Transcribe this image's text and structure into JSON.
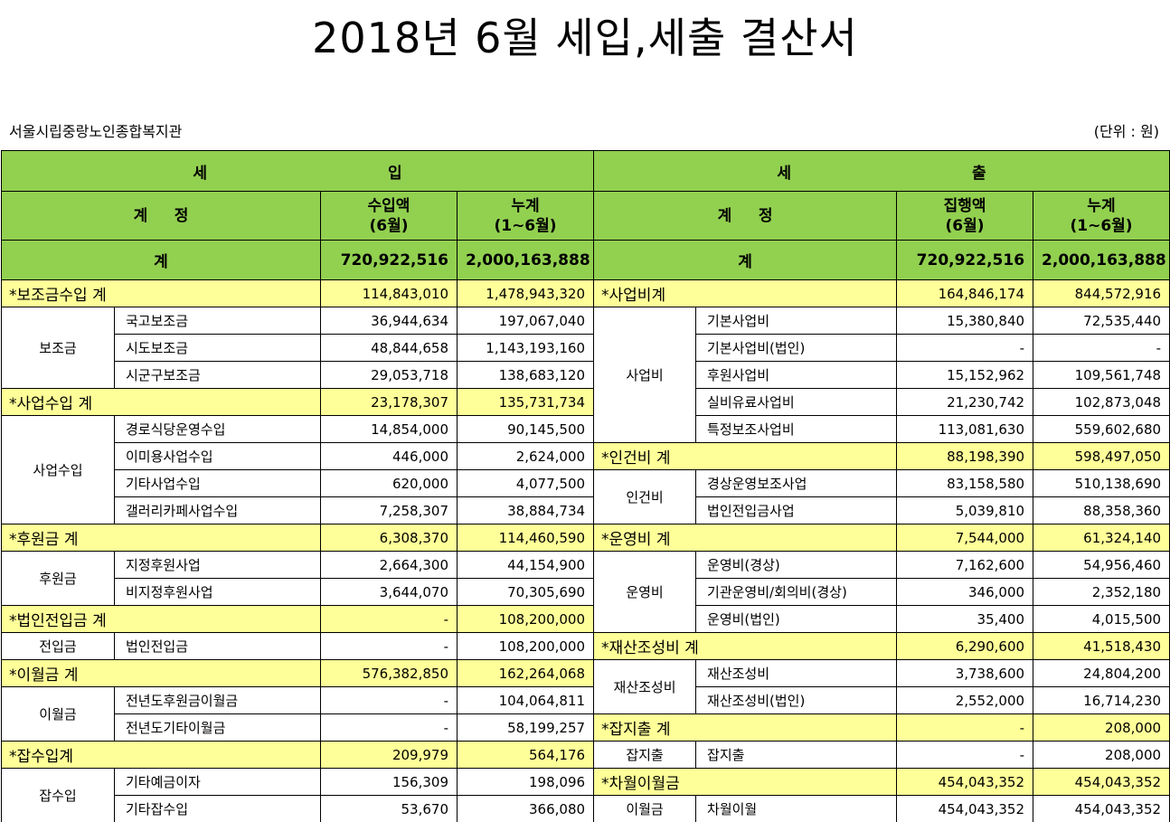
{
  "title": "2018년 6월 세입,세출 결산서",
  "org": "서울시립중랑노인종합복지관",
  "unit": "(단위 : 원)",
  "header": {
    "income_1": "세",
    "income_2": "입",
    "expense_1": "세",
    "expense_2": "출",
    "account_1": "계",
    "account_2": "정",
    "income_amount_1": "수입액",
    "income_amount_2": "(6월)",
    "cumulative_1": "누계",
    "cumulative_2": "(1~6월)",
    "expense_amount_1": "집행액",
    "expense_amount_2": "(6월)",
    "total_label": "계"
  },
  "totals": {
    "income_month": "720,922,516",
    "income_cum": "2,000,163,888",
    "expense_month": "720,922,516",
    "expense_cum": "2,000,163,888"
  },
  "income": {
    "subsidy": {
      "label": "*보조금수입 계",
      "month": "114,843,010",
      "cum": "1,478,943,320",
      "group": "보조금",
      "items": [
        {
          "name": "국고보조금",
          "month": "36,944,634",
          "cum": "197,067,040"
        },
        {
          "name": "시도보조금",
          "month": "48,844,658",
          "cum": "1,143,193,160"
        },
        {
          "name": "시군구보조금",
          "month": "29,053,718",
          "cum": "138,683,120"
        }
      ]
    },
    "business": {
      "label": "*사업수입 계",
      "month": "23,178,307",
      "cum": "135,731,734",
      "group": "사업수입",
      "items": [
        {
          "name": "경로식당운영수입",
          "month": "14,854,000",
          "cum": "90,145,500"
        },
        {
          "name": "이미용사업수입",
          "month": "446,000",
          "cum": "2,624,000"
        },
        {
          "name": "기타사업수입",
          "month": "620,000",
          "cum": "4,077,500"
        },
        {
          "name": "갤러리카페사업수입",
          "month": "7,258,307",
          "cum": "38,884,734"
        }
      ]
    },
    "donation": {
      "label": "*후원금 계",
      "month": "6,308,370",
      "cum": "114,460,590",
      "group": "후원금",
      "items": [
        {
          "name": "지정후원사업",
          "month": "2,664,300",
          "cum": "44,154,900"
        },
        {
          "name": "비지정후원사업",
          "month": "3,644,070",
          "cum": "70,305,690"
        }
      ]
    },
    "transfer": {
      "label": "*법인전입금 계",
      "month": "-",
      "cum": "108,200,000",
      "group": "전입금",
      "items": [
        {
          "name": "법인전입금",
          "month": "-",
          "cum": "108,200,000"
        }
      ]
    },
    "carryover": {
      "label": "*이월금 계",
      "month": "576,382,850",
      "cum": "162,264,068",
      "group": "이월금",
      "items": [
        {
          "name": "전년도후원금이월금",
          "month": "-",
          "cum": "104,064,811"
        },
        {
          "name": "전년도기타이월금",
          "month": "-",
          "cum": "58,199,257"
        }
      ]
    },
    "misc": {
      "label": "*잡수입계",
      "month": "209,979",
      "cum": "564,176",
      "group": "잡수입",
      "items": [
        {
          "name": "기타예금이자",
          "month": "156,309",
          "cum": "198,096"
        },
        {
          "name": "기타잡수입",
          "month": "53,670",
          "cum": "366,080"
        }
      ]
    }
  },
  "expense": {
    "business": {
      "label": "*사업비계",
      "month": "164,846,174",
      "cum": "844,572,916",
      "group": "사업비",
      "items": [
        {
          "name": "기본사업비",
          "month": "15,380,840",
          "cum": "72,535,440"
        },
        {
          "name": "기본사업비(법인)",
          "month": "-",
          "cum": "-"
        },
        {
          "name": "후원사업비",
          "month": "15,152,962",
          "cum": "109,561,748"
        },
        {
          "name": "실비유료사업비",
          "month": "21,230,742",
          "cum": "102,873,048"
        },
        {
          "name": "특정보조사업비",
          "month": "113,081,630",
          "cum": "559,602,680"
        }
      ]
    },
    "personnel": {
      "label": "*인건비 계",
      "month": "88,198,390",
      "cum": "598,497,050",
      "group": "인건비",
      "items": [
        {
          "name": "경상운영보조사업",
          "month": "83,158,580",
          "cum": "510,138,690"
        },
        {
          "name": "법인전입금사업",
          "month": "5,039,810",
          "cum": "88,358,360"
        }
      ]
    },
    "operation": {
      "label": "*운영비 계",
      "month": "7,544,000",
      "cum": "61,324,140",
      "group": "운영비",
      "items": [
        {
          "name": "운영비(경상)",
          "month": "7,162,600",
          "cum": "54,956,460"
        },
        {
          "name": "기관운영비/회의비(경상)",
          "month": "346,000",
          "cum": "2,352,180"
        },
        {
          "name": "운영비(법인)",
          "month": "35,400",
          "cum": "4,015,500"
        }
      ]
    },
    "property": {
      "label": "*재산조성비 계",
      "month": "6,290,600",
      "cum": "41,518,430",
      "group": "재산조성비",
      "items": [
        {
          "name": "재산조성비",
          "month": "3,738,600",
          "cum": "24,804,200"
        },
        {
          "name": "재산조성비(법인)",
          "month": "2,552,000",
          "cum": "16,714,230"
        }
      ]
    },
    "misc": {
      "label": "*잡지출 계",
      "month": "-",
      "cum": "208,000",
      "group": "잡지출",
      "items": [
        {
          "name": "잡지출",
          "month": "-",
          "cum": "208,000"
        }
      ]
    },
    "carryover": {
      "label": "*차월이월금",
      "month": "454,043,352",
      "cum": "454,043,352",
      "group": "이월금",
      "items": [
        {
          "name": "차월이월",
          "month": "454,043,352",
          "cum": "454,043,352"
        }
      ]
    }
  }
}
